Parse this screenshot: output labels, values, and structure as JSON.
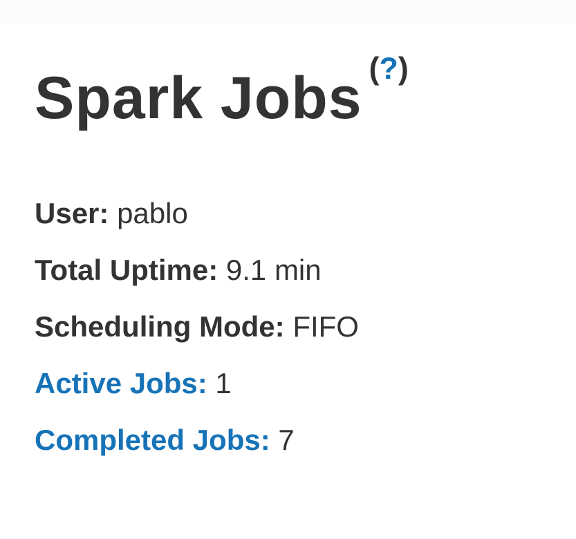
{
  "header": {
    "title": "Spark Jobs",
    "help": {
      "open_paren": "(",
      "question_mark": "?",
      "close_paren": ")"
    }
  },
  "summary": {
    "rows": [
      {
        "label": "User:",
        "value": "pablo"
      },
      {
        "label": "Total Uptime:",
        "value": "9.1 min"
      },
      {
        "label": "Scheduling Mode:",
        "value": "FIFO"
      },
      {
        "label": "Active Jobs:",
        "value": "1"
      },
      {
        "label": "Completed Jobs:",
        "value": "7"
      }
    ]
  },
  "colors": {
    "link_blue": "#1773b8",
    "text_dark": "#333333",
    "background": "#ffffff",
    "top_band": "#fcfcfc"
  }
}
